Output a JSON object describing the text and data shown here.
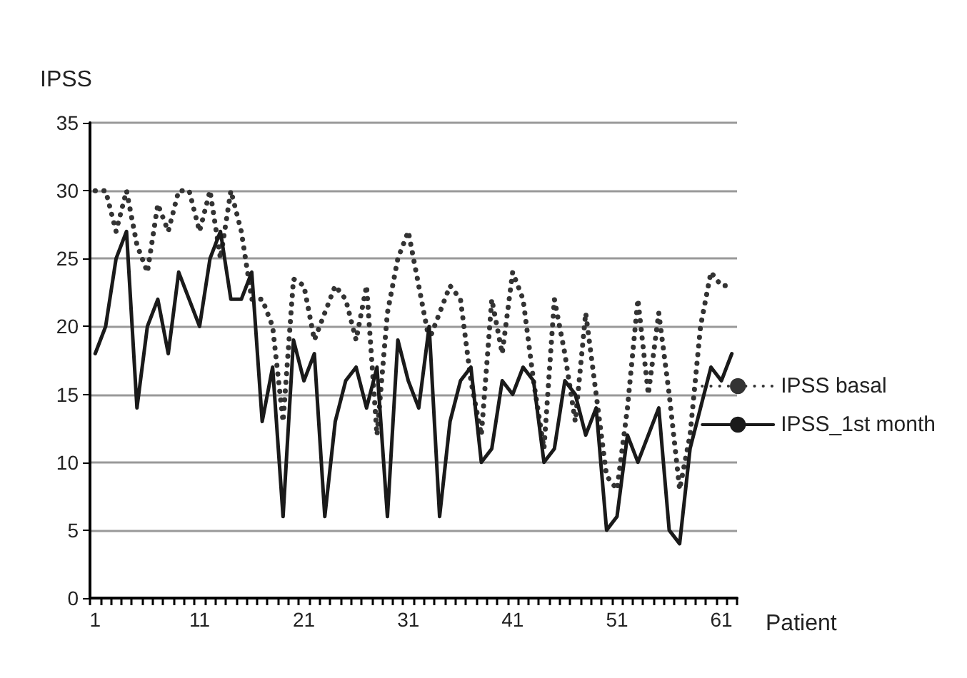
{
  "chart_data": {
    "type": "line",
    "xlabel": "Patient",
    "ylabel": "IPSS",
    "categories": [
      "1",
      null,
      null,
      null,
      null,
      null,
      null,
      null,
      null,
      null,
      "11",
      null,
      null,
      null,
      null,
      null,
      null,
      null,
      null,
      null,
      "21",
      null,
      null,
      null,
      null,
      null,
      null,
      null,
      null,
      null,
      "31",
      null,
      null,
      null,
      null,
      null,
      null,
      null,
      null,
      null,
      "41",
      null,
      null,
      null,
      null,
      null,
      null,
      null,
      null,
      null,
      "51",
      null,
      null,
      null,
      null,
      null,
      null,
      null,
      null,
      null,
      "61",
      null
    ],
    "series": [
      {
        "name": "IPSS basal",
        "color": "#333333",
        "line_style": "dotted",
        "values": [
          30,
          30,
          27,
          30,
          26,
          24,
          29,
          27,
          30,
          30,
          27,
          30,
          25,
          30,
          27,
          22,
          22,
          20,
          13,
          23.5,
          23,
          19,
          21,
          23,
          22,
          19,
          23,
          12,
          21,
          25,
          27,
          23,
          19,
          21,
          23,
          22,
          16,
          12,
          22,
          18,
          24,
          22,
          16,
          11,
          22,
          18,
          13,
          21,
          15,
          9,
          8,
          14,
          22,
          15,
          21,
          15,
          8,
          12,
          20,
          24,
          23,
          23
        ]
      },
      {
        "name": "IPSS_1st month",
        "color": "#1a1a1a",
        "line_style": "solid",
        "values": [
          18,
          20,
          25,
          27,
          14,
          20,
          22,
          18,
          24,
          22,
          20,
          25,
          27,
          22,
          22,
          24,
          13,
          17,
          6,
          19,
          16,
          18,
          6,
          13,
          16,
          17,
          14,
          17,
          6,
          19,
          16,
          14,
          20,
          6,
          13,
          16,
          17,
          10,
          11,
          16,
          15,
          17,
          16,
          10,
          11,
          16,
          15,
          12,
          14,
          5,
          6,
          12,
          10,
          12,
          14,
          5,
          4,
          11,
          14,
          17,
          16,
          18
        ]
      }
    ],
    "ylim": [
      0,
      35
    ],
    "yticks": [
      0,
      5,
      10,
      15,
      20,
      25,
      30,
      35
    ],
    "grid": "y",
    "legend": "right",
    "marker": "none"
  }
}
